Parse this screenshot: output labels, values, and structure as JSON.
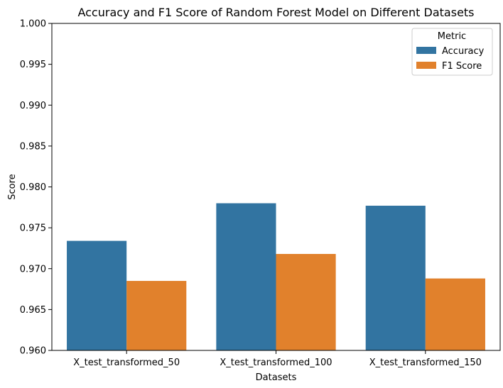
{
  "chart_data": {
    "type": "bar",
    "title": "Accuracy and F1 Score of Random Forest Model on Different Datasets",
    "xlabel": "Datasets",
    "ylabel": "Score",
    "categories": [
      "X_test_transformed_50",
      "X_test_transformed_100",
      "X_test_transformed_150"
    ],
    "series": [
      {
        "name": "Accuracy",
        "values": [
          0.9734,
          0.978,
          0.9777
        ],
        "color": "#3274a1"
      },
      {
        "name": "F1 Score",
        "values": [
          0.9685,
          0.9718,
          0.9688
        ],
        "color": "#e1812c"
      }
    ],
    "ylim": [
      0.96,
      1.0
    ],
    "yticks": [
      "0.960",
      "0.965",
      "0.970",
      "0.975",
      "0.980",
      "0.985",
      "0.990",
      "0.995",
      "1.000"
    ],
    "legend": {
      "title": "Metric",
      "position": "top-right"
    },
    "grid": false
  }
}
